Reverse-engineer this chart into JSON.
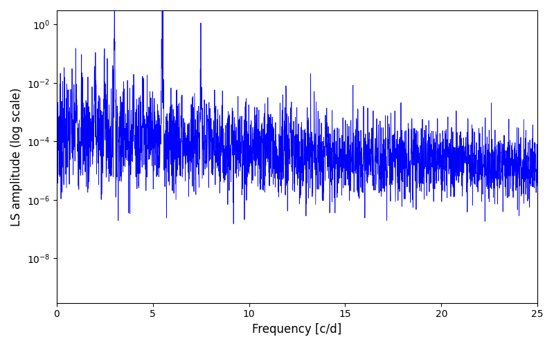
{
  "title": "",
  "xlabel": "Frequency [c/d]",
  "ylabel": "LS amplitude (log scale)",
  "xlim": [
    0,
    25
  ],
  "ylim": [
    3e-10,
    3
  ],
  "line_color": "#0000ff",
  "line_width": 0.6,
  "figsize": [
    8.0,
    5.0
  ],
  "dpi": 100,
  "yscale": "log",
  "yticks": [
    1e-08,
    1e-06,
    0.0001,
    0.01,
    1.0
  ],
  "xticks": [
    0,
    5,
    10,
    15,
    20,
    25
  ],
  "n_points": 3000,
  "freq_max": 25.0,
  "seed": 7
}
